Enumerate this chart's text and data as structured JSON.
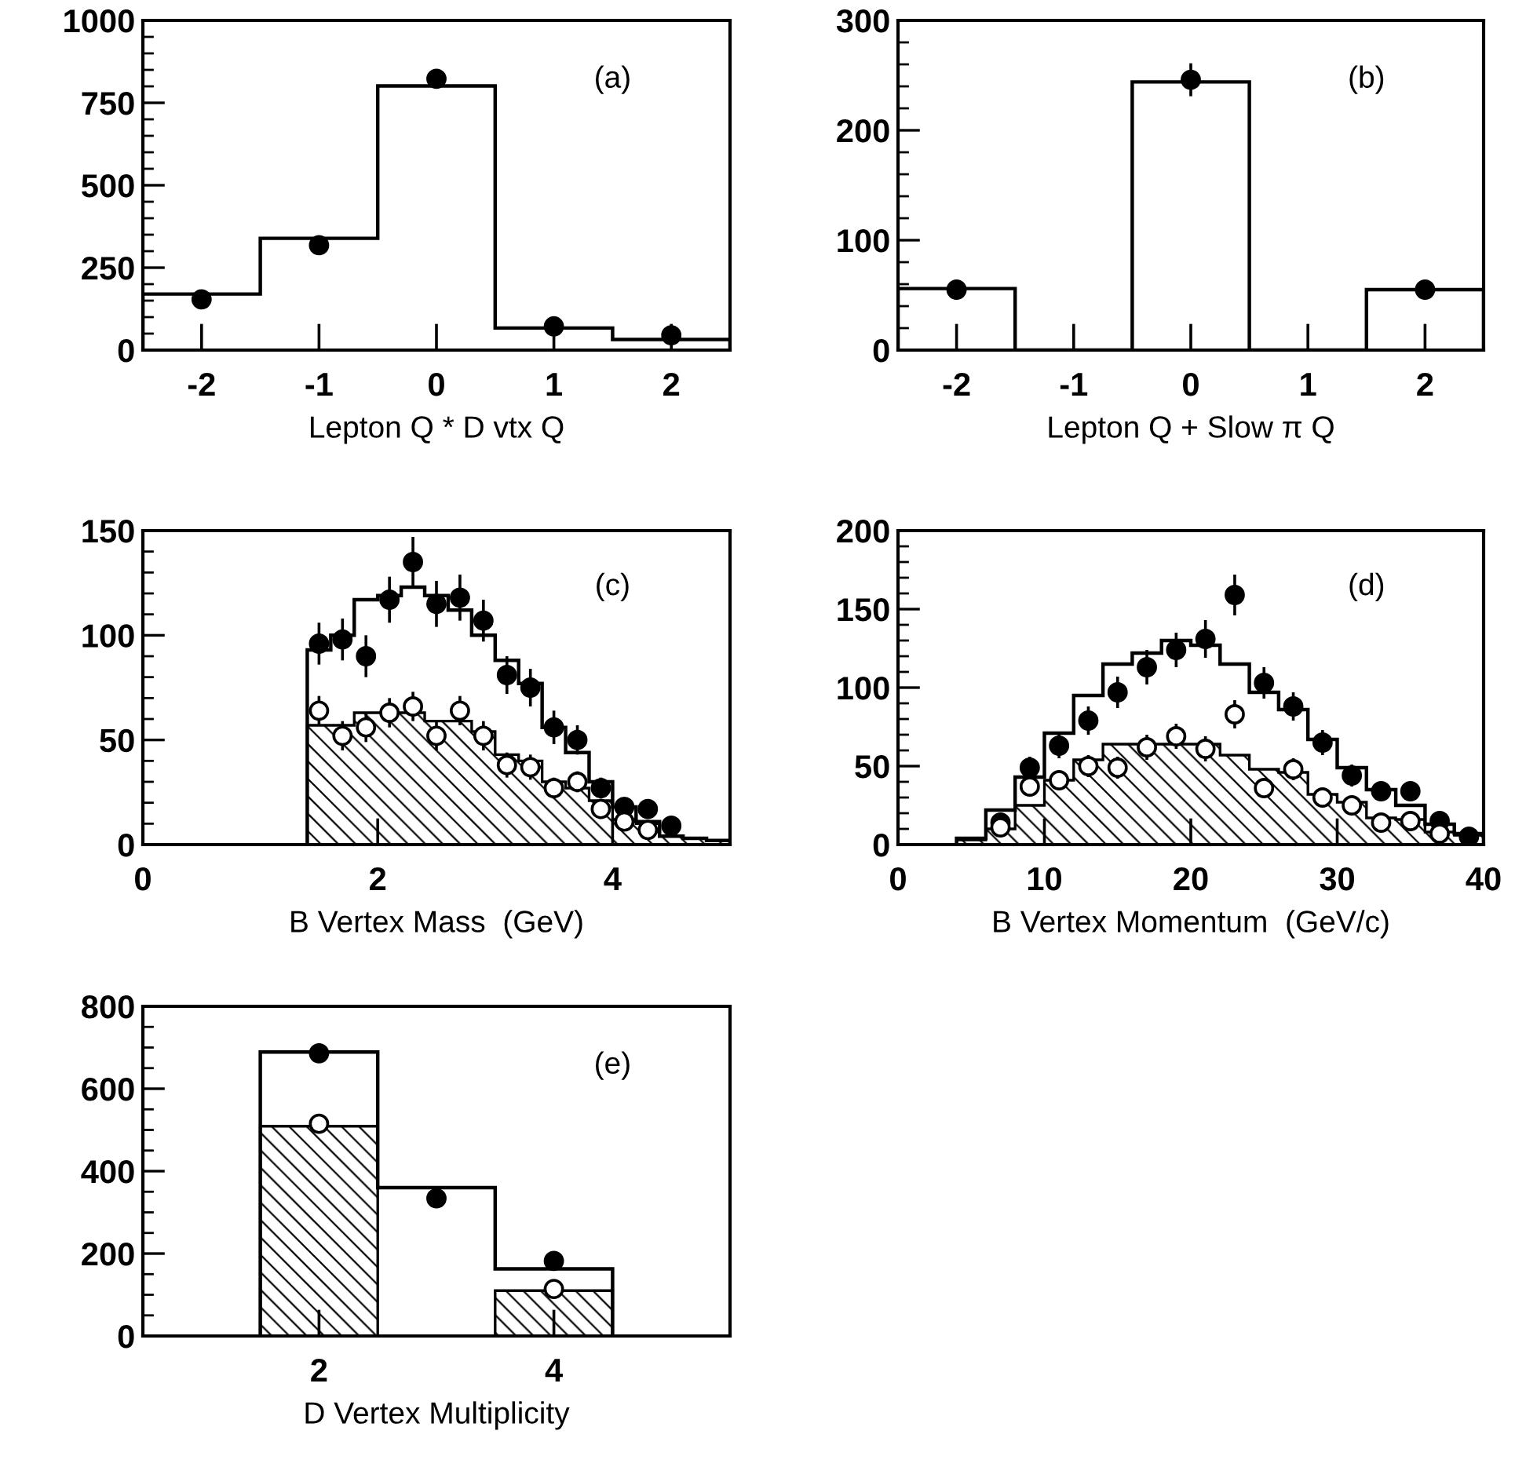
{
  "chart_data": [
    {
      "type": "histogram",
      "xlabel": "Lepton Q * D vtx Q",
      "annotations": [
        "(a)"
      ],
      "xlim": [
        -2.5,
        2.5
      ],
      "ylim": [
        0,
        1000
      ],
      "xticks": [
        -2,
        -1,
        0,
        1,
        2
      ],
      "yticks": [
        0,
        250,
        500,
        750,
        1000
      ],
      "bins": [
        -2.5,
        -1.5,
        -0.5,
        0.5,
        1.5,
        2.5
      ],
      "series": [
        {
          "type": "histogram",
          "color": "#000000",
          "values": [
            170,
            339,
            801,
            67,
            32
          ]
        },
        {
          "type": "scatter",
          "marker": "circle",
          "color": "#000000",
          "x": [
            -2,
            -1,
            0,
            1,
            2
          ],
          "values": [
            154,
            318,
            823,
            72,
            45
          ]
        }
      ]
    },
    {
      "type": "histogram",
      "xlabel": "Lepton Q + Slow π Q",
      "annotations": [
        "(b)"
      ],
      "xlim": [
        -2.5,
        2.5
      ],
      "ylim": [
        0,
        300
      ],
      "xticks": [
        -2,
        -1,
        0,
        1,
        2
      ],
      "yticks": [
        0,
        100,
        200,
        300
      ],
      "bins": [
        -2.5,
        -1.5,
        -0.5,
        0.5,
        1.5,
        2.5
      ],
      "series": [
        {
          "type": "histogram",
          "color": "#000000",
          "values": [
            56,
            0,
            244,
            0,
            55
          ]
        },
        {
          "type": "scatter",
          "marker": "circle",
          "color": "#000000",
          "x": [
            -2,
            0,
            2
          ],
          "values": [
            55,
            246,
            55
          ],
          "errors": [
            null,
            15,
            null
          ]
        }
      ]
    },
    {
      "type": "histogram",
      "xlabel": "B Vertex Mass  (GeV)",
      "annotations": [
        "(c)"
      ],
      "xlim": [
        0,
        5
      ],
      "ylim": [
        0,
        150
      ],
      "xticks": [
        0,
        2,
        4
      ],
      "yticks": [
        0,
        50,
        100,
        150
      ],
      "bins": [
        1.4,
        1.6,
        1.8,
        2.0,
        2.2,
        2.4,
        2.6,
        2.8,
        3.0,
        3.2,
        3.4,
        3.6,
        3.8,
        4.0,
        4.2,
        4.4,
        4.6,
        4.8,
        5.0
      ],
      "series": [
        {
          "type": "histogram",
          "color": "#000000",
          "values": [
            93,
            100,
            117,
            119,
            123,
            119,
            112,
            100,
            88,
            77,
            56,
            44,
            30,
            18,
            11,
            4,
            3,
            2
          ]
        },
        {
          "type": "histogram",
          "color": "#000000",
          "values": [
            57,
            57,
            63,
            63,
            63,
            59,
            59,
            54,
            43,
            40,
            30,
            27,
            21,
            12,
            10,
            4,
            3,
            2
          ]
        },
        {
          "type": "scatter",
          "marker": "circle",
          "color": "#000000",
          "x": [
            1.5,
            1.7,
            1.9,
            2.1,
            2.3,
            2.5,
            2.7,
            2.9,
            3.1,
            3.3,
            3.5,
            3.7,
            3.9,
            4.1,
            4.3,
            4.5
          ],
          "values": [
            96,
            98,
            90,
            117,
            135,
            115,
            118,
            107,
            81,
            75,
            56,
            50,
            27,
            18,
            17,
            9
          ],
          "errors": [
            10,
            10,
            10,
            11,
            12,
            11,
            11,
            10,
            9,
            9,
            8,
            7,
            5,
            4,
            4,
            3
          ]
        },
        {
          "type": "scatter",
          "marker": "circle",
          "color": "#ffffff",
          "x": [
            1.5,
            1.7,
            1.9,
            2.1,
            2.3,
            2.5,
            2.7,
            2.9,
            3.1,
            3.3,
            3.5,
            3.7,
            3.9,
            4.1,
            4.3
          ],
          "values": [
            64,
            52,
            56,
            63,
            66,
            52,
            64,
            52,
            38,
            37,
            27,
            30,
            17,
            11,
            7
          ],
          "errors": [
            7,
            7,
            7,
            7,
            7,
            7,
            7,
            7,
            6,
            6,
            5,
            5,
            4,
            3,
            3
          ]
        }
      ]
    },
    {
      "type": "histogram",
      "xlabel": "B Vertex Momentum  (GeV/c)",
      "annotations": [
        "(d)"
      ],
      "xlim": [
        0,
        40
      ],
      "ylim": [
        0,
        200
      ],
      "xticks": [
        0,
        10,
        20,
        30,
        40
      ],
      "yticks": [
        0,
        50,
        100,
        150,
        200
      ],
      "bins": [
        4,
        6,
        8,
        10,
        12,
        14,
        16,
        18,
        20,
        22,
        24,
        26,
        28,
        30,
        32,
        34,
        36,
        38,
        40
      ],
      "series": [
        {
          "type": "histogram",
          "color": "#000000",
          "values": [
            4,
            22,
            43,
            71,
            95,
            115,
            122,
            130,
            127,
            115,
            97,
            86,
            67,
            49,
            35,
            25,
            13,
            7
          ]
        },
        {
          "type": "histogram",
          "color": "#000000",
          "values": [
            3,
            10,
            25,
            41,
            54,
            64,
            64,
            64,
            64,
            57,
            48,
            46,
            32,
            27,
            17,
            16,
            8,
            6
          ]
        },
        {
          "type": "scatter",
          "marker": "circle",
          "color": "#000000",
          "x": [
            7,
            9,
            11,
            13,
            15,
            17,
            19,
            21,
            23,
            25,
            27,
            29,
            31,
            33,
            35,
            37,
            39
          ],
          "values": [
            14,
            49,
            63,
            79,
            97,
            113,
            124,
            131,
            159,
            103,
            88,
            65,
            44,
            34,
            34,
            15,
            5
          ],
          "errors": [
            4,
            7,
            8,
            9,
            10,
            11,
            11,
            12,
            13,
            10,
            9,
            8,
            7,
            6,
            6,
            4,
            2
          ]
        },
        {
          "type": "scatter",
          "marker": "circle",
          "color": "#ffffff",
          "x": [
            7,
            9,
            11,
            13,
            15,
            17,
            19,
            21,
            23,
            25,
            27,
            29,
            31,
            33,
            35,
            37
          ],
          "values": [
            11,
            37,
            41,
            50,
            49,
            62,
            69,
            61,
            83,
            36,
            48,
            30,
            25,
            14,
            15,
            7
          ],
          "errors": [
            3,
            6,
            6,
            7,
            7,
            8,
            8,
            8,
            9,
            6,
            7,
            5,
            5,
            4,
            4,
            3
          ]
        }
      ]
    },
    {
      "type": "histogram",
      "xlabel": "D Vertex Multiplicity",
      "annotations": [
        "(e)"
      ],
      "xlim": [
        0.5,
        5.5
      ],
      "ylim": [
        0,
        800
      ],
      "xticks": [
        2,
        4
      ],
      "yticks": [
        0,
        200,
        400,
        600,
        800
      ],
      "bins": [
        1.5,
        2.5,
        3.5,
        4.5
      ],
      "series": [
        {
          "type": "histogram",
          "color": "#000000",
          "values": [
            689,
            360,
            163
          ]
        },
        {
          "type": "histogram",
          "color": "#000000",
          "values": [
            509,
            0,
            110
          ]
        },
        {
          "type": "scatter",
          "marker": "circle",
          "color": "#000000",
          "x": [
            2,
            3,
            4
          ],
          "values": [
            686,
            334,
            182
          ]
        },
        {
          "type": "scatter",
          "marker": "circle",
          "color": "#ffffff",
          "x": [
            2,
            4
          ],
          "values": [
            515,
            114
          ]
        }
      ]
    }
  ]
}
